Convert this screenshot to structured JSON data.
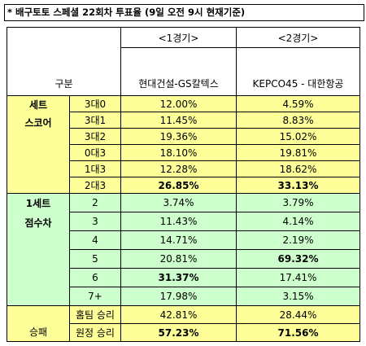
{
  "title": "* 배구토토 스페셜 22회차 투표율 (9일 오전 9시 현재기준)",
  "table": {
    "header": {
      "group": "구분",
      "matches": [
        "<1경기>",
        "<2경기>"
      ],
      "teams": [
        "현대건설-GS칼텍스",
        "KEPCO45 - 대한항공"
      ]
    },
    "sections": [
      {
        "label": [
          "세트",
          "스코어"
        ],
        "rows": [
          {
            "label": "3대0",
            "values": [
              "12.00%",
              "4.59%"
            ],
            "bold": [
              false,
              false
            ]
          },
          {
            "label": "3대1",
            "values": [
              "11.45%",
              "8.83%"
            ],
            "bold": [
              false,
              false
            ]
          },
          {
            "label": "3대2",
            "values": [
              "19.36%",
              "15.02%"
            ],
            "bold": [
              false,
              false
            ]
          },
          {
            "label": "0대3",
            "values": [
              "18.10%",
              "19.81%"
            ],
            "bold": [
              false,
              false
            ]
          },
          {
            "label": "1대3",
            "values": [
              "12.28%",
              "18.62%"
            ],
            "bold": [
              false,
              false
            ]
          },
          {
            "label": "2대3",
            "values": [
              "26.85%",
              "33.13%"
            ],
            "bold": [
              true,
              true
            ]
          }
        ]
      },
      {
        "label": [
          "1세트",
          "점수차"
        ],
        "rows": [
          {
            "label": "2",
            "values": [
              "3.74%",
              "3.79%"
            ],
            "bold": [
              false,
              false
            ]
          },
          {
            "label": "3",
            "values": [
              "11.43%",
              "4.14%"
            ],
            "bold": [
              false,
              false
            ]
          },
          {
            "label": "4",
            "values": [
              "14.71%",
              "2.19%"
            ],
            "bold": [
              false,
              false
            ]
          },
          {
            "label": "5",
            "values": [
              "20.81%",
              "69.32%"
            ],
            "bold": [
              false,
              true
            ]
          },
          {
            "label": "6",
            "values": [
              "31.37%",
              "17.41%"
            ],
            "bold": [
              true,
              false
            ]
          },
          {
            "label": "7+",
            "values": [
              "17.98%",
              "3.15%"
            ],
            "bold": [
              false,
              false
            ]
          }
        ]
      },
      {
        "label": [
          "승패"
        ],
        "rows": [
          {
            "label": "홈팀 승리",
            "values": [
              "42.81%",
              "28.44%"
            ],
            "bold": [
              false,
              false
            ]
          },
          {
            "label": "원정 승리",
            "values": [
              "57.23%",
              "71.56%"
            ],
            "bold": [
              true,
              true
            ]
          }
        ]
      }
    ]
  }
}
